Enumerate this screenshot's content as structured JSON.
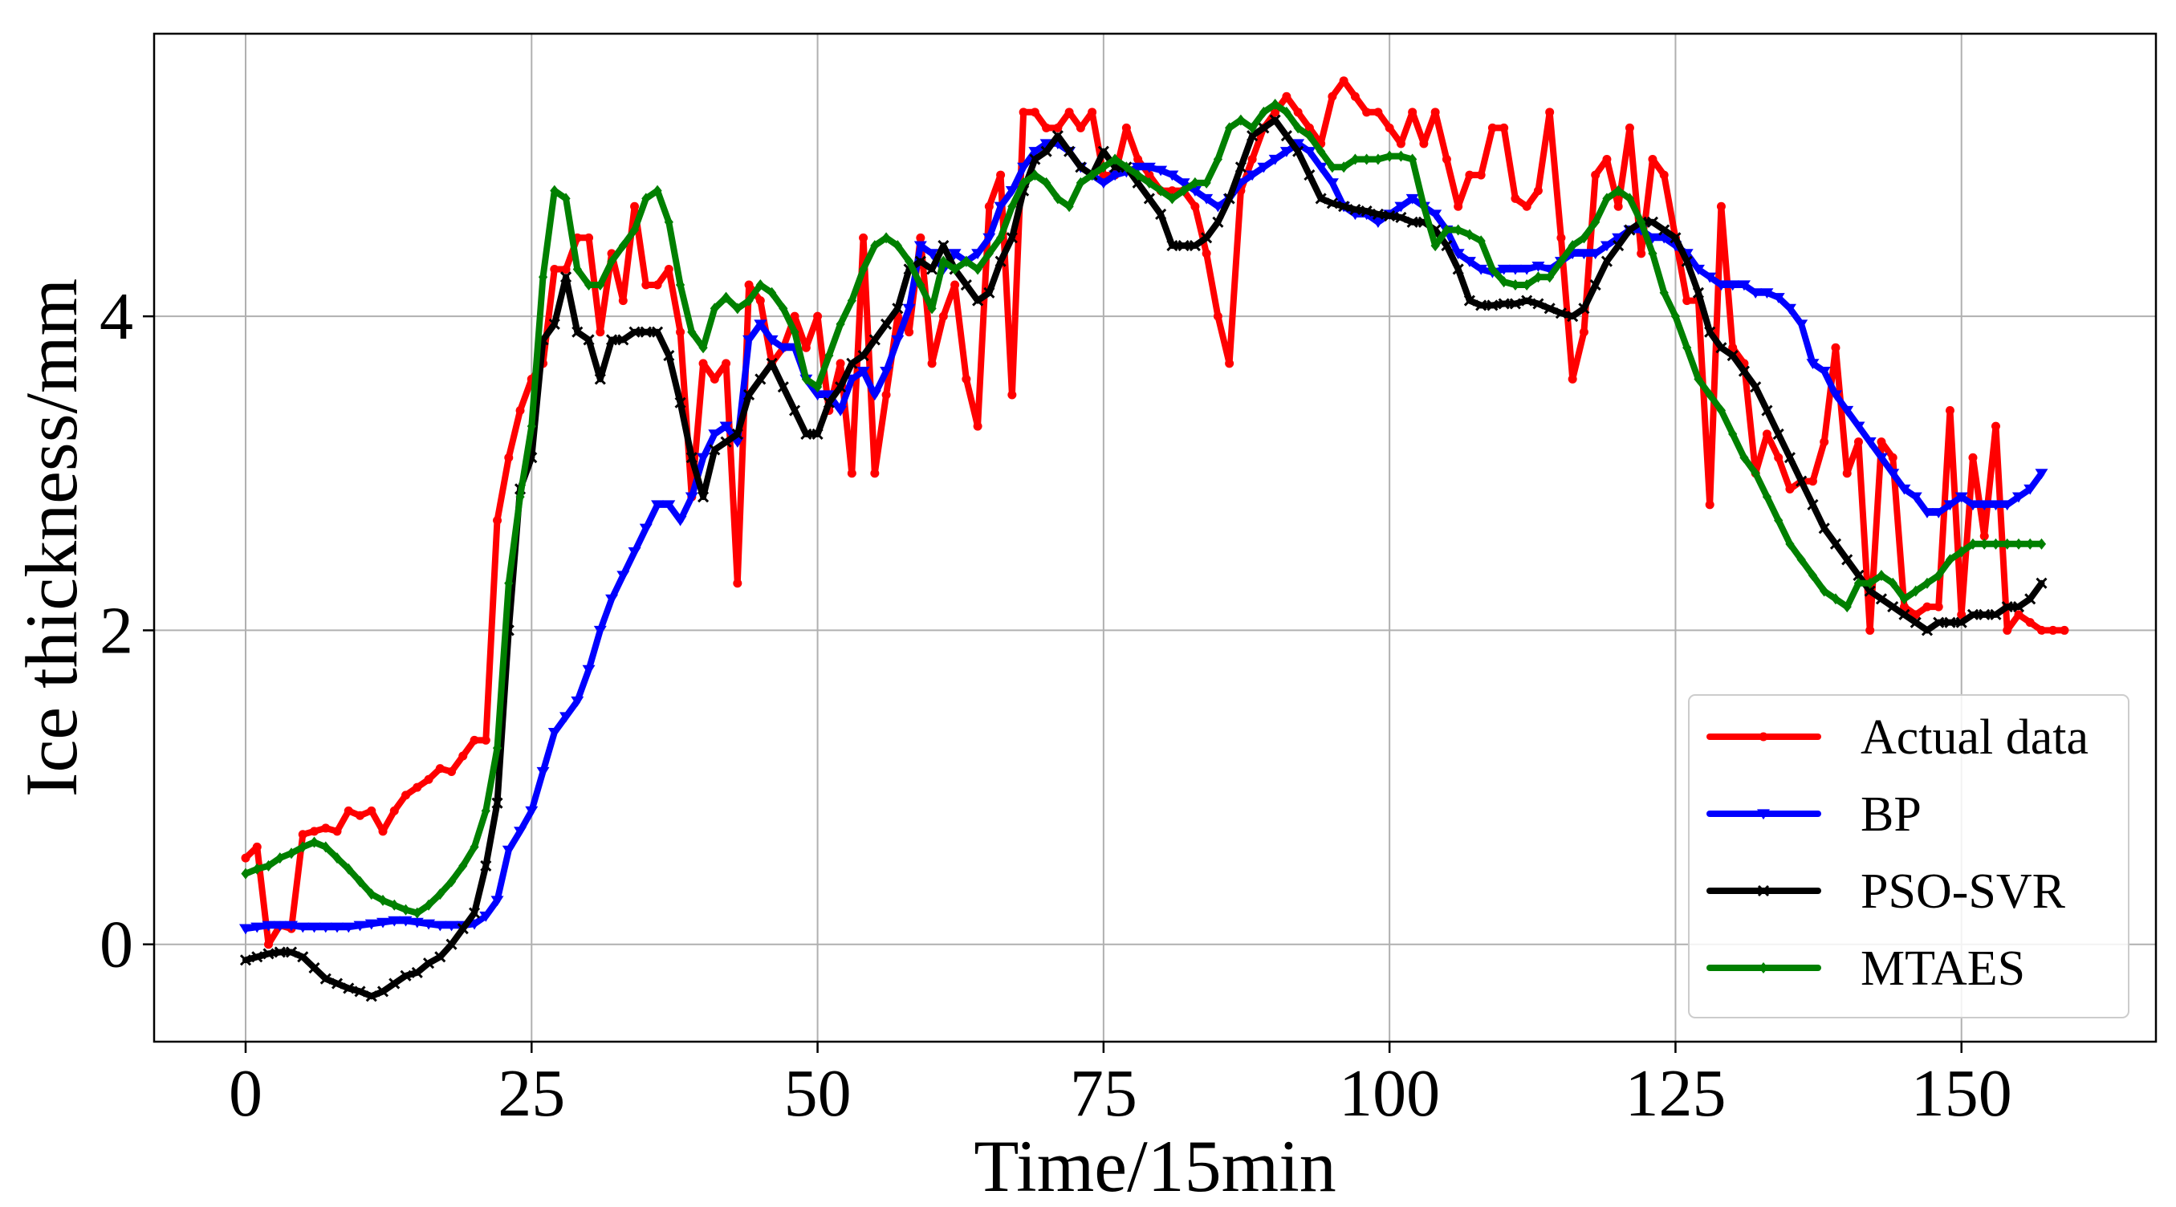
{
  "chart_data": {
    "type": "line",
    "title": "",
    "xlabel": "Time/15min",
    "ylabel": "Ice thickness/mm",
    "xlim": [
      -8,
      167
    ],
    "ylim": [
      -0.62,
      5.8
    ],
    "xticks": [
      0,
      25,
      50,
      75,
      100,
      125,
      150
    ],
    "yticks": [
      0,
      2,
      4
    ],
    "grid": true,
    "legend_position": "lower right",
    "series": [
      {
        "name": "Actual data",
        "color": "#ff0000",
        "marker": "circle",
        "values": [
          0.55,
          0.62,
          0.0,
          0.12,
          0.1,
          0.7,
          0.72,
          0.74,
          0.72,
          0.85,
          0.82,
          0.85,
          0.72,
          0.85,
          0.95,
          1.0,
          1.05,
          1.12,
          1.1,
          1.2,
          1.3,
          1.3,
          2.7,
          3.1,
          3.4,
          3.6,
          3.7,
          4.3,
          4.3,
          4.5,
          4.5,
          3.9,
          4.4,
          4.1,
          4.7,
          4.2,
          4.2,
          4.3,
          3.9,
          2.85,
          3.7,
          3.6,
          3.7,
          2.3,
          4.2,
          4.1,
          3.7,
          3.8,
          4.0,
          3.8,
          4.0,
          3.4,
          3.7,
          3.0,
          4.5,
          3.0,
          3.5,
          4.0,
          3.9,
          4.5,
          3.7,
          4.0,
          4.2,
          3.6,
          3.3,
          4.7,
          4.9,
          3.5,
          5.3,
          5.3,
          5.2,
          5.2,
          5.3,
          5.2,
          5.3,
          4.9,
          4.9,
          5.2,
          5.0,
          4.9,
          4.8,
          4.8,
          4.8,
          4.7,
          4.4,
          4.0,
          3.7,
          4.8,
          5.0,
          5.2,
          5.3,
          5.4,
          5.3,
          5.2,
          5.1,
          5.4,
          5.5,
          5.4,
          5.3,
          5.3,
          5.2,
          5.1,
          5.3,
          5.1,
          5.3,
          5.0,
          4.7,
          4.9,
          4.9,
          5.2,
          5.2,
          4.75,
          4.7,
          4.8,
          5.3,
          4.5,
          3.6,
          3.9,
          4.9,
          5.0,
          4.7,
          5.2,
          4.4,
          5.0,
          4.9,
          4.5,
          4.1,
          4.1,
          2.8,
          4.7,
          3.8,
          3.7,
          3.0,
          3.25,
          3.1,
          2.9,
          2.95,
          2.95,
          3.2,
          3.8,
          3.0,
          3.2,
          2.0,
          3.2,
          3.1,
          2.15,
          2.1,
          2.15,
          2.15,
          3.4,
          2.1,
          3.1,
          2.6,
          3.3,
          2.0,
          2.1,
          2.05,
          2.0,
          2.0,
          2.0
        ]
      },
      {
        "name": "BP",
        "color": "#0000ff",
        "marker": "triangle-down",
        "values": [
          0.1,
          0.11,
          0.12,
          0.12,
          0.12,
          0.11,
          0.11,
          0.11,
          0.11,
          0.11,
          0.12,
          0.13,
          0.14,
          0.15,
          0.15,
          0.14,
          0.13,
          0.12,
          0.12,
          0.12,
          0.13,
          0.18,
          0.28,
          0.6,
          0.72,
          0.85,
          1.1,
          1.35,
          1.45,
          1.55,
          1.75,
          2.0,
          2.2,
          2.35,
          2.5,
          2.65,
          2.8,
          2.8,
          2.7,
          2.85,
          3.1,
          3.25,
          3.3,
          3.2,
          3.85,
          3.95,
          3.85,
          3.8,
          3.8,
          3.6,
          3.5,
          3.5,
          3.4,
          3.6,
          3.65,
          3.5,
          3.65,
          3.85,
          4.05,
          4.45,
          4.4,
          4.3,
          4.4,
          4.35,
          4.4,
          4.5,
          4.7,
          4.8,
          4.95,
          5.05,
          5.1,
          5.1,
          5.05,
          4.95,
          4.9,
          4.85,
          4.9,
          4.92,
          4.95,
          4.95,
          4.93,
          4.9,
          4.85,
          4.8,
          4.75,
          4.7,
          4.75,
          4.85,
          4.9,
          4.95,
          5.0,
          5.05,
          5.1,
          5.05,
          4.95,
          4.85,
          4.7,
          4.65,
          4.65,
          4.6,
          4.65,
          4.7,
          4.75,
          4.7,
          4.65,
          4.55,
          4.4,
          4.35,
          4.3,
          4.28,
          4.3,
          4.3,
          4.3,
          4.32,
          4.3,
          4.35,
          4.4,
          4.4,
          4.4,
          4.45,
          4.5,
          4.55,
          4.55,
          4.5,
          4.5,
          4.45,
          4.4,
          4.3,
          4.25,
          4.2,
          4.2,
          4.2,
          4.15,
          4.15,
          4.12,
          4.05,
          3.95,
          3.7,
          3.65,
          3.5,
          3.4,
          3.3,
          3.2,
          3.1,
          3.0,
          2.9,
          2.85,
          2.75,
          2.75,
          2.8,
          2.85,
          2.8,
          2.8,
          2.8,
          2.8,
          2.85,
          2.9,
          3.0
        ]
      },
      {
        "name": "PSO-SVR",
        "color": "#000000",
        "marker": "x",
        "values": [
          -0.1,
          -0.08,
          -0.06,
          -0.05,
          -0.05,
          -0.08,
          -0.15,
          -0.22,
          -0.25,
          -0.28,
          -0.3,
          -0.33,
          -0.3,
          -0.25,
          -0.2,
          -0.18,
          -0.12,
          -0.08,
          0.0,
          0.1,
          0.2,
          0.5,
          0.9,
          2.0,
          2.9,
          3.1,
          3.85,
          3.95,
          4.25,
          3.9,
          3.85,
          3.6,
          3.85,
          3.85,
          3.9,
          3.9,
          3.9,
          3.75,
          3.45,
          3.1,
          2.85,
          3.15,
          3.2,
          3.25,
          3.5,
          3.6,
          3.7,
          3.55,
          3.4,
          3.25,
          3.25,
          3.45,
          3.55,
          3.7,
          3.75,
          3.85,
          3.95,
          4.05,
          4.3,
          4.35,
          4.3,
          4.45,
          4.3,
          4.2,
          4.1,
          4.15,
          4.35,
          4.5,
          4.8,
          5.0,
          5.05,
          5.15,
          5.05,
          4.95,
          4.9,
          5.05,
          4.95,
          4.95,
          4.85,
          4.75,
          4.65,
          4.45,
          4.45,
          4.45,
          4.5,
          4.6,
          4.75,
          4.95,
          5.15,
          5.2,
          5.25,
          5.15,
          5.05,
          4.9,
          4.75,
          4.72,
          4.7,
          4.68,
          4.67,
          4.65,
          4.64,
          4.63,
          4.6,
          4.6,
          4.55,
          4.45,
          4.3,
          4.1,
          4.07,
          4.07,
          4.08,
          4.08,
          4.1,
          4.08,
          4.05,
          4.02,
          4.0,
          4.05,
          4.2,
          4.35,
          4.45,
          4.55,
          4.6,
          4.6,
          4.55,
          4.5,
          4.35,
          4.15,
          3.9,
          3.8,
          3.75,
          3.65,
          3.55,
          3.4,
          3.25,
          3.1,
          2.95,
          2.8,
          2.65,
          2.55,
          2.45,
          2.35,
          2.25,
          2.2,
          2.15,
          2.1,
          2.05,
          2.0,
          2.05,
          2.05,
          2.05,
          2.1,
          2.1,
          2.1,
          2.15,
          2.15,
          2.2,
          2.3
        ]
      },
      {
        "name": "MTAES",
        "color": "#008000",
        "marker": "diamond",
        "values": [
          0.45,
          0.48,
          0.5,
          0.55,
          0.58,
          0.62,
          0.65,
          0.62,
          0.55,
          0.48,
          0.4,
          0.32,
          0.28,
          0.25,
          0.22,
          0.2,
          0.25,
          0.32,
          0.4,
          0.5,
          0.62,
          0.85,
          1.25,
          2.3,
          2.85,
          3.3,
          4.25,
          4.8,
          4.75,
          4.3,
          4.2,
          4.2,
          4.35,
          4.45,
          4.55,
          4.75,
          4.8,
          4.6,
          4.2,
          3.9,
          3.8,
          4.05,
          4.12,
          4.05,
          4.1,
          4.2,
          4.15,
          4.05,
          3.9,
          3.6,
          3.55,
          3.75,
          3.95,
          4.1,
          4.3,
          4.45,
          4.5,
          4.45,
          4.35,
          4.2,
          4.05,
          4.35,
          4.3,
          4.35,
          4.3,
          4.4,
          4.5,
          4.7,
          4.85,
          4.9,
          4.85,
          4.75,
          4.7,
          4.85,
          4.9,
          4.95,
          5.0,
          4.95,
          4.9,
          4.85,
          4.8,
          4.75,
          4.8,
          4.85,
          4.85,
          5.0,
          5.2,
          5.25,
          5.2,
          5.3,
          5.35,
          5.3,
          5.2,
          5.15,
          5.05,
          4.95,
          4.95,
          5.0,
          5.0,
          5.0,
          5.02,
          5.02,
          5.0,
          4.7,
          4.45,
          4.55,
          4.55,
          4.52,
          4.48,
          4.3,
          4.22,
          4.2,
          4.2,
          4.25,
          4.25,
          4.35,
          4.45,
          4.5,
          4.6,
          4.75,
          4.8,
          4.75,
          4.6,
          4.4,
          4.15,
          4.0,
          3.8,
          3.6,
          3.5,
          3.4,
          3.25,
          3.1,
          3.0,
          2.85,
          2.7,
          2.55,
          2.45,
          2.35,
          2.25,
          2.2,
          2.15,
          2.3,
          2.3,
          2.35,
          2.3,
          2.2,
          2.25,
          2.3,
          2.35,
          2.45,
          2.5,
          2.55,
          2.55,
          2.55,
          2.55,
          2.55,
          2.55,
          2.55
        ]
      }
    ]
  }
}
